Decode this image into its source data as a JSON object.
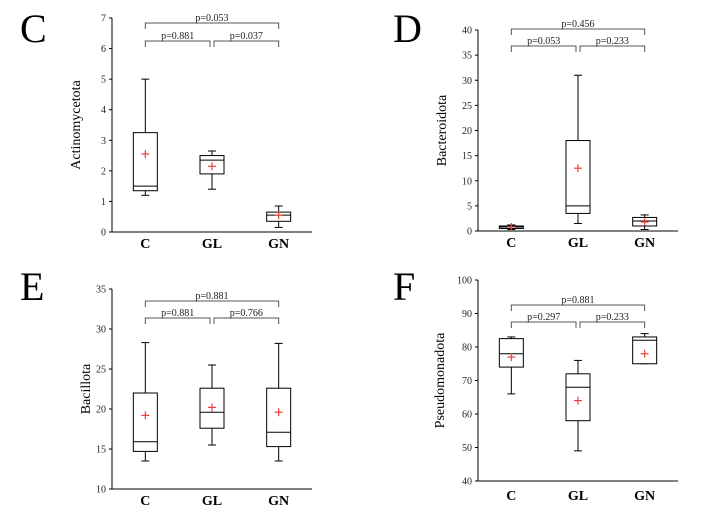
{
  "chart_data": [
    {
      "type": "box",
      "panel": "C",
      "ylabel": "Actinomycetota",
      "ylim": [
        0,
        7
      ],
      "yticks": [
        0,
        1,
        2,
        3,
        4,
        5,
        6,
        7
      ],
      "categories": [
        "C",
        "GL",
        "GN"
      ],
      "boxes": [
        {
          "min": 1.2,
          "q1": 1.35,
          "median": 1.5,
          "q3": 3.25,
          "max": 5.0,
          "mean": 2.55
        },
        {
          "min": 1.4,
          "q1": 1.9,
          "median": 2.35,
          "q3": 2.5,
          "max": 2.65,
          "mean": 2.15
        },
        {
          "min": 0.15,
          "q1": 0.35,
          "median": 0.55,
          "q3": 0.65,
          "max": 0.85,
          "mean": 0.55
        }
      ],
      "comparisons": [
        {
          "from": 0,
          "to": 1,
          "label": "p=0.881"
        },
        {
          "from": 1,
          "to": 2,
          "label": "p=0.037"
        },
        {
          "from": 0,
          "to": 2,
          "label": "p=0.053"
        }
      ]
    },
    {
      "type": "box",
      "panel": "D",
      "ylabel": "Bacteroidota",
      "ylim": [
        0,
        40
      ],
      "yticks": [
        0,
        5,
        10,
        15,
        20,
        25,
        30,
        35,
        40
      ],
      "categories": [
        "C",
        "GL",
        "GN"
      ],
      "boxes": [
        {
          "min": 0.3,
          "q1": 0.5,
          "median": 0.8,
          "q3": 1.0,
          "max": 1.2,
          "mean": 0.8
        },
        {
          "min": 1.5,
          "q1": 3.5,
          "median": 5.0,
          "q3": 18.0,
          "max": 31.0,
          "mean": 12.5
        },
        {
          "min": 0.3,
          "q1": 1.0,
          "median": 2.0,
          "q3": 2.7,
          "max": 3.2,
          "mean": 1.8
        }
      ],
      "comparisons": [
        {
          "from": 0,
          "to": 1,
          "label": "p=0.053"
        },
        {
          "from": 1,
          "to": 2,
          "label": "p=0.233"
        },
        {
          "from": 0,
          "to": 2,
          "label": "p=0.456"
        }
      ]
    },
    {
      "type": "box",
      "panel": "E",
      "ylabel": "Bacillota",
      "ylim": [
        10,
        35
      ],
      "yticks": [
        10,
        15,
        20,
        25,
        30,
        35
      ],
      "categories": [
        "C",
        "GL",
        "GN"
      ],
      "boxes": [
        {
          "min": 13.5,
          "q1": 14.7,
          "median": 15.9,
          "q3": 22.0,
          "max": 28.3,
          "mean": 19.2
        },
        {
          "min": 15.5,
          "q1": 17.6,
          "median": 19.6,
          "q3": 22.6,
          "max": 25.5,
          "mean": 20.2
        },
        {
          "min": 13.5,
          "q1": 15.3,
          "median": 17.1,
          "q3": 22.6,
          "max": 28.2,
          "mean": 19.6
        }
      ],
      "comparisons": [
        {
          "from": 0,
          "to": 1,
          "label": "p=0.881"
        },
        {
          "from": 1,
          "to": 2,
          "label": "p=0.766"
        },
        {
          "from": 0,
          "to": 2,
          "label": "p=0.881"
        }
      ]
    },
    {
      "type": "box",
      "panel": "F",
      "ylabel": "Pseudomonadota",
      "ylim": [
        40,
        100
      ],
      "yticks": [
        40,
        50,
        60,
        70,
        80,
        90,
        100
      ],
      "categories": [
        "C",
        "GL",
        "GN"
      ],
      "boxes": [
        {
          "min": 66,
          "q1": 74,
          "median": 78,
          "q3": 82.5,
          "max": 83,
          "mean": 77
        },
        {
          "min": 49,
          "q1": 58,
          "median": 68,
          "q3": 72,
          "max": 76,
          "mean": 64
        },
        {
          "min": 75,
          "q1": 75,
          "median": 82,
          "q3": 83,
          "max": 84,
          "mean": 78
        }
      ],
      "comparisons": [
        {
          "from": 0,
          "to": 1,
          "label": "p=0.297"
        },
        {
          "from": 1,
          "to": 2,
          "label": "p=0.233"
        },
        {
          "from": 0,
          "to": 2,
          "label": "p=0.881"
        }
      ]
    }
  ]
}
